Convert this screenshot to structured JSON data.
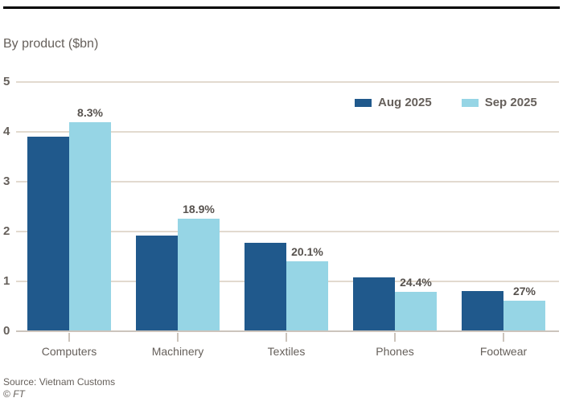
{
  "header": {
    "subtitle": "By product ($bn)"
  },
  "chart_data": {
    "type": "bar",
    "categories": [
      "Computers",
      "Machinery",
      "Textiles",
      "Phones",
      "Footwear"
    ],
    "series": [
      {
        "name": "Aug 2025",
        "color": "#20598C",
        "values": [
          3.9,
          1.92,
          1.78,
          1.08,
          0.8
        ]
      },
      {
        "name": "Sep 2025",
        "color": "#96D5E5",
        "values": [
          4.2,
          2.26,
          1.41,
          0.79,
          0.62
        ]
      }
    ],
    "bar_labels": {
      "on_series": "Sep 2025",
      "values": [
        "8.3%",
        "18.9%",
        "20.1%",
        "24.4%",
        "27%"
      ]
    },
    "title": "",
    "xlabel": "",
    "ylabel": "",
    "ylim": [
      0,
      5
    ],
    "yticks": [
      0,
      1,
      2,
      3,
      4,
      5
    ],
    "grid": true,
    "legend_position": "top-right"
  },
  "footer": {
    "source": "Source: Vietnam Customs",
    "credit_symbol": "©",
    "credit_name": "FT"
  },
  "style": {
    "grid_color": "#E2DACF",
    "axis_color": "#CCC4BC",
    "text_color": "#66605B",
    "label_color": "#57524E",
    "rule_color": "#000000",
    "background_color": "#FFFFFF"
  }
}
